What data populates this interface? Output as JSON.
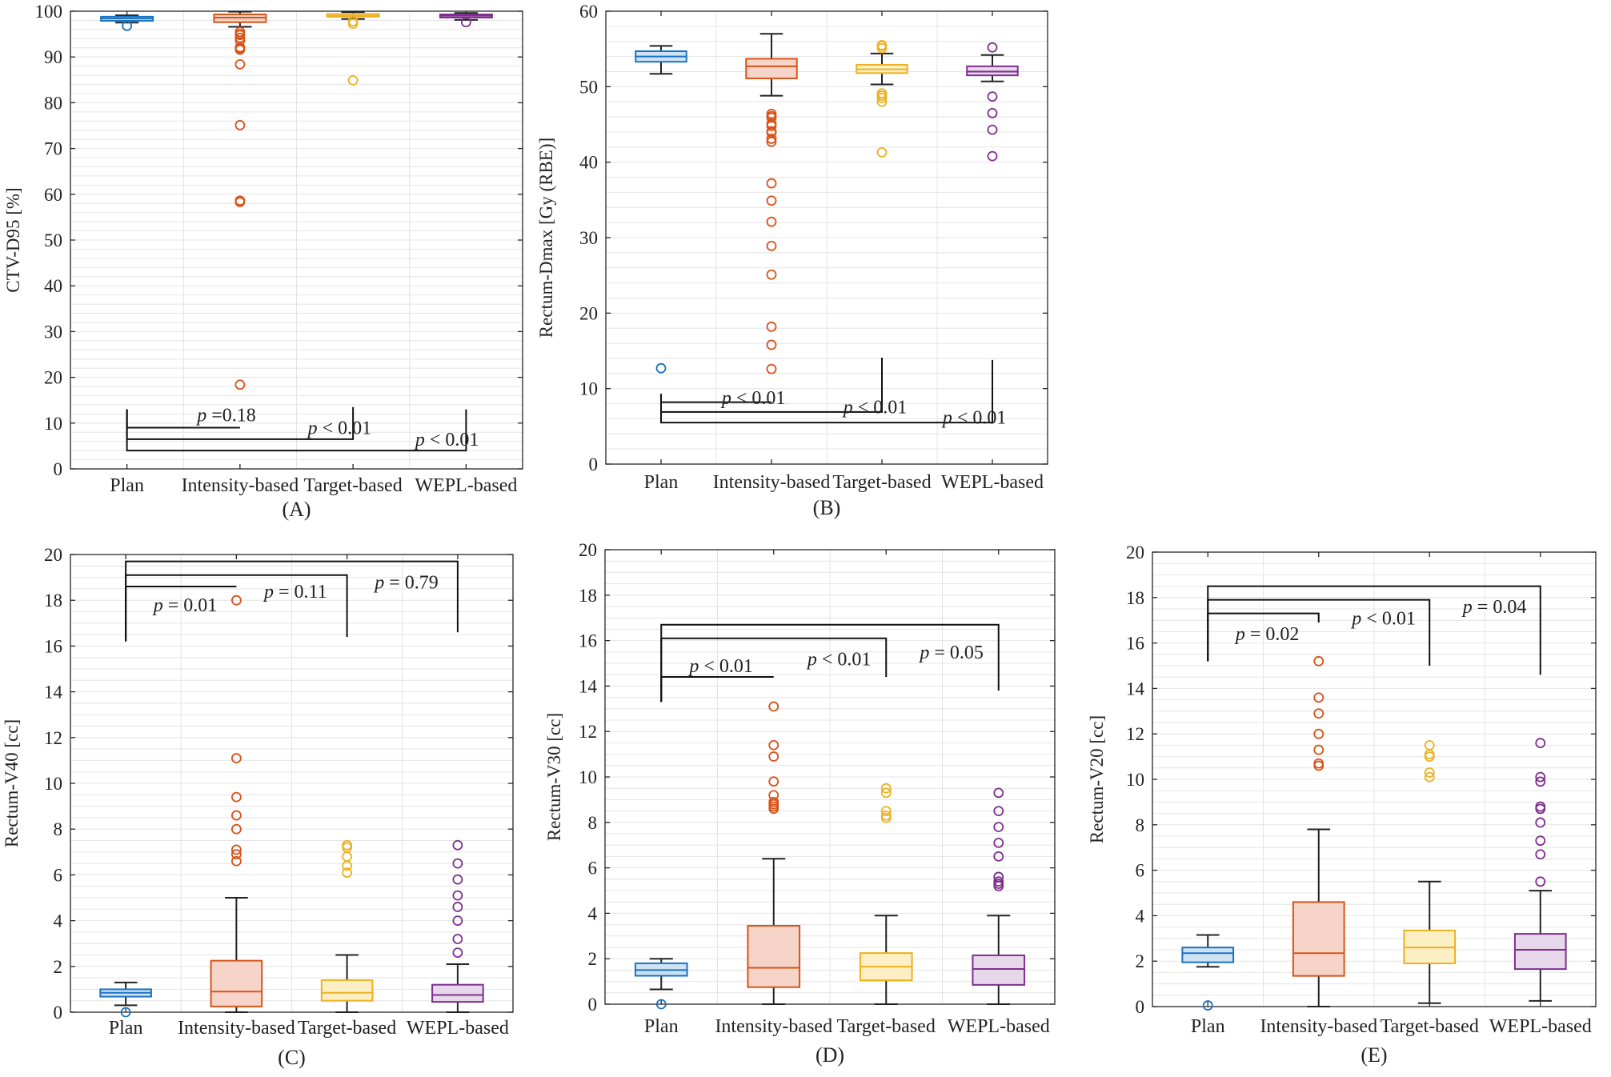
{
  "chart_data": [
    {
      "id": "A",
      "type": "box",
      "panel_label": "(A)",
      "ylabel": "CTV-D95 [%]",
      "ylim": [
        0,
        100
      ],
      "yticks": [
        0,
        10,
        20,
        30,
        40,
        50,
        60,
        70,
        80,
        90,
        100
      ],
      "minor_step": 2,
      "categories": [
        "Plan",
        "Intensity-based",
        "Target-based",
        "WEPL-based"
      ],
      "boxes": [
        {
          "q1": 97.9,
          "median": 98.4,
          "q3": 98.8,
          "whisker_low": 97.5,
          "whisker_high": 99.1,
          "outliers": [
            96.8
          ]
        },
        {
          "q1": 97.6,
          "median": 98.6,
          "q3": 99.3,
          "whisker_low": 96.6,
          "whisker_high": 99.9,
          "outliers": [
            95.5,
            95.0,
            94.8,
            94.2,
            93.5,
            92.1,
            91.8,
            91.6,
            88.4,
            75.1,
            58.6,
            58.3,
            18.4
          ]
        },
        {
          "q1": 98.8,
          "median": 99.0,
          "q3": 99.4,
          "whisker_low": 98.3,
          "whisker_high": 99.8,
          "outliers": [
            97.8,
            97.3,
            84.9
          ]
        },
        {
          "q1": 98.6,
          "median": 99.0,
          "q3": 99.3,
          "whisker_low": 98.1,
          "whisker_high": 99.6,
          "outliers": [
            97.6
          ]
        }
      ],
      "brackets": [
        {
          "to": 1,
          "y_top": 13.0,
          "y_bar": 9.0,
          "y_end": 9.0,
          "label": "p =0.18",
          "label_x_cat": 0.62,
          "label_y": 11.8
        },
        {
          "to": 2,
          "y_top": 13.0,
          "y_bar": 6.5,
          "y_end": 13.5,
          "label": "p < 0.01",
          "label_x_cat": 1.6,
          "label_y": 9.0
        },
        {
          "to": 3,
          "y_top": 13.0,
          "y_bar": 4.0,
          "y_end": 13.0,
          "label": "p < 0.01",
          "label_x_cat": 2.55,
          "label_y": 6.5
        }
      ]
    },
    {
      "id": "B",
      "type": "box",
      "panel_label": "(B)",
      "ylabel": "Rectum-Dmax [Gy (RBE)]",
      "ylim": [
        0,
        60
      ],
      "yticks": [
        0,
        10,
        20,
        30,
        40,
        50,
        60
      ],
      "minor_step": 2,
      "categories": [
        "Plan",
        "Intensity-based",
        "Target-based",
        "WEPL-based"
      ],
      "boxes": [
        {
          "q1": 53.3,
          "median": 54.0,
          "q3": 54.7,
          "whisker_low": 51.7,
          "whisker_high": 55.4,
          "outliers": [
            12.7
          ]
        },
        {
          "q1": 51.1,
          "median": 52.7,
          "q3": 53.7,
          "whisker_low": 48.8,
          "whisker_high": 57.0,
          "outliers": [
            46.4,
            46.1,
            45.9,
            45.1,
            44.8,
            44.1,
            43.9,
            43.1,
            42.7,
            37.2,
            34.9,
            32.1,
            28.9,
            25.1,
            18.2,
            15.8,
            12.6
          ]
        },
        {
          "q1": 51.8,
          "median": 52.3,
          "q3": 52.9,
          "whisker_low": 50.3,
          "whisker_high": 54.4,
          "outliers": [
            55.5,
            55.4,
            55.1,
            49.1,
            48.8,
            48.5,
            48.0,
            41.3
          ]
        },
        {
          "q1": 51.5,
          "median": 52.0,
          "q3": 52.7,
          "whisker_low": 50.7,
          "whisker_high": 54.2,
          "outliers": [
            55.2,
            48.7,
            46.5,
            44.3,
            40.8
          ]
        }
      ],
      "brackets": [
        {
          "to": 1,
          "y_top": 9.3,
          "y_bar": 8.2,
          "y_end": 8.2,
          "label": "p < 0.01",
          "label_x_cat": 0.55,
          "label_y": 8.8
        },
        {
          "to": 2,
          "y_top": 9.3,
          "y_bar": 6.9,
          "y_end": 14.1,
          "label": "p < 0.01",
          "label_x_cat": 1.65,
          "label_y": 7.6
        },
        {
          "to": 3,
          "y_top": 9.3,
          "y_bar": 5.5,
          "y_end": 13.8,
          "label": "p < 0.01",
          "label_x_cat": 2.55,
          "label_y": 6.2
        }
      ]
    },
    {
      "id": "C",
      "type": "box",
      "panel_label": "(C)",
      "ylabel": "Rectum-V40 [cc]",
      "ylim": [
        0,
        20
      ],
      "yticks": [
        0,
        2,
        4,
        6,
        8,
        10,
        12,
        14,
        16,
        18,
        20
      ],
      "minor_step": 0.5,
      "categories": [
        "Plan",
        "Intensity-based",
        "Target-based",
        "WEPL-based"
      ],
      "boxes": [
        {
          "q1": 0.68,
          "median": 0.85,
          "q3": 1.0,
          "whisker_low": 0.3,
          "whisker_high": 1.3,
          "outliers": [
            0.0
          ]
        },
        {
          "q1": 0.25,
          "median": 0.9,
          "q3": 2.25,
          "whisker_low": 0.0,
          "whisker_high": 5.0,
          "outliers": [
            18.0,
            11.1,
            9.4,
            8.6,
            8.0,
            7.1,
            6.9,
            6.6
          ]
        },
        {
          "q1": 0.5,
          "median": 0.85,
          "q3": 1.4,
          "whisker_low": 0.0,
          "whisker_high": 2.5,
          "outliers": [
            7.3,
            7.2,
            6.8,
            6.4,
            6.1
          ]
        },
        {
          "q1": 0.45,
          "median": 0.75,
          "q3": 1.2,
          "whisker_low": 0.0,
          "whisker_high": 2.1,
          "outliers": [
            7.3,
            6.5,
            5.8,
            5.1,
            4.6,
            4.0,
            3.2,
            2.6
          ]
        }
      ],
      "brackets": [
        {
          "to": 1,
          "y_top": 16.2,
          "y_bar": 18.6,
          "y_end": 18.6,
          "label": "p = 0.01",
          "label_x_cat": 0.25,
          "label_y": 17.8
        },
        {
          "to": 2,
          "y_top": 16.2,
          "y_bar": 19.1,
          "y_end": 16.4,
          "label": "p = 0.11",
          "label_x_cat": 1.25,
          "label_y": 18.4
        },
        {
          "to": 3,
          "y_top": 16.2,
          "y_bar": 19.7,
          "y_end": 16.6,
          "label": "p = 0.79",
          "label_x_cat": 2.25,
          "label_y": 18.8
        }
      ]
    },
    {
      "id": "D",
      "type": "box",
      "panel_label": "(D)",
      "ylabel": "Rectum-V30 [cc]",
      "ylim": [
        0,
        20
      ],
      "yticks": [
        0,
        2,
        4,
        6,
        8,
        10,
        12,
        14,
        16,
        18,
        20
      ],
      "minor_step": 0.5,
      "categories": [
        "Plan",
        "Intensity-based",
        "Target-based",
        "WEPL-based"
      ],
      "boxes": [
        {
          "q1": 1.25,
          "median": 1.5,
          "q3": 1.8,
          "whisker_low": 0.65,
          "whisker_high": 2.0,
          "outliers": [
            0.0
          ]
        },
        {
          "q1": 0.75,
          "median": 1.6,
          "q3": 3.45,
          "whisker_low": 0.0,
          "whisker_high": 6.4,
          "outliers": [
            13.1,
            11.4,
            10.9,
            9.8,
            9.2,
            8.9,
            8.8,
            8.7,
            8.6
          ]
        },
        {
          "q1": 1.05,
          "median": 1.65,
          "q3": 2.25,
          "whisker_low": 0.0,
          "whisker_high": 3.9,
          "outliers": [
            9.5,
            9.3,
            8.5,
            8.3,
            8.2
          ]
        },
        {
          "q1": 0.85,
          "median": 1.55,
          "q3": 2.15,
          "whisker_low": 0.0,
          "whisker_high": 3.9,
          "outliers": [
            9.3,
            8.5,
            7.8,
            7.1,
            6.5,
            5.6,
            5.4,
            5.3,
            5.2
          ]
        }
      ],
      "brackets": [
        {
          "to": 1,
          "y_top": 13.3,
          "y_bar": 14.4,
          "y_end": 14.4,
          "label": "p < 0.01",
          "label_x_cat": 0.25,
          "label_y": 14.9
        },
        {
          "to": 2,
          "y_top": 13.3,
          "y_bar": 16.1,
          "y_end": 14.4,
          "label": "p < 0.01",
          "label_x_cat": 1.3,
          "label_y": 15.2
        },
        {
          "to": 3,
          "y_top": 13.3,
          "y_bar": 16.7,
          "y_end": 13.8,
          "label": "p = 0.05",
          "label_x_cat": 2.3,
          "label_y": 15.5
        }
      ]
    },
    {
      "id": "E",
      "type": "box",
      "panel_label": "(E)",
      "ylabel": "Rectum-V20 [cc]",
      "ylim": [
        0,
        20
      ],
      "yticks": [
        0,
        2,
        4,
        6,
        8,
        10,
        12,
        14,
        16,
        18,
        20
      ],
      "minor_step": 0.5,
      "categories": [
        "Plan",
        "Intensity-based",
        "Target-based",
        "WEPL-based"
      ],
      "boxes": [
        {
          "q1": 1.95,
          "median": 2.35,
          "q3": 2.6,
          "whisker_low": 1.75,
          "whisker_high": 3.15,
          "outliers": [
            0.05
          ]
        },
        {
          "q1": 1.35,
          "median": 2.35,
          "q3": 4.6,
          "whisker_low": 0.0,
          "whisker_high": 7.8,
          "outliers": [
            15.2,
            13.6,
            12.9,
            12.0,
            11.3,
            10.7,
            10.6
          ]
        },
        {
          "q1": 1.9,
          "median": 2.6,
          "q3": 3.35,
          "whisker_low": 0.15,
          "whisker_high": 5.5,
          "outliers": [
            11.5,
            11.1,
            11.0,
            10.3,
            10.1
          ]
        },
        {
          "q1": 1.65,
          "median": 2.5,
          "q3": 3.2,
          "whisker_low": 0.25,
          "whisker_high": 5.1,
          "outliers": [
            11.6,
            10.1,
            9.9,
            8.8,
            8.7,
            8.1,
            7.3,
            6.7,
            5.5
          ]
        }
      ],
      "brackets": [
        {
          "to": 1,
          "y_top": 15.2,
          "y_bar": 17.3,
          "y_end": 16.9,
          "label": "p = 0.02",
          "label_x_cat": 0.25,
          "label_y": 16.4
        },
        {
          "to": 2,
          "y_top": 15.2,
          "y_bar": 17.9,
          "y_end": 15.0,
          "label": "p < 0.01",
          "label_x_cat": 1.3,
          "label_y": 17.1
        },
        {
          "to": 3,
          "y_top": 15.2,
          "y_bar": 18.5,
          "y_end": 14.6,
          "label": "p = 0.04",
          "label_x_cat": 2.3,
          "label_y": 17.6
        }
      ]
    }
  ],
  "colors": {
    "plan": "#1a73c2",
    "intensity": "#d95319",
    "target": "#edb120",
    "wepl": "#7e2f8e",
    "plan_fill": "#cfe2f3",
    "intensity_fill": "#f6d5c8",
    "target_fill": "#fcefc3",
    "wepl_fill": "#e6d7ea"
  }
}
